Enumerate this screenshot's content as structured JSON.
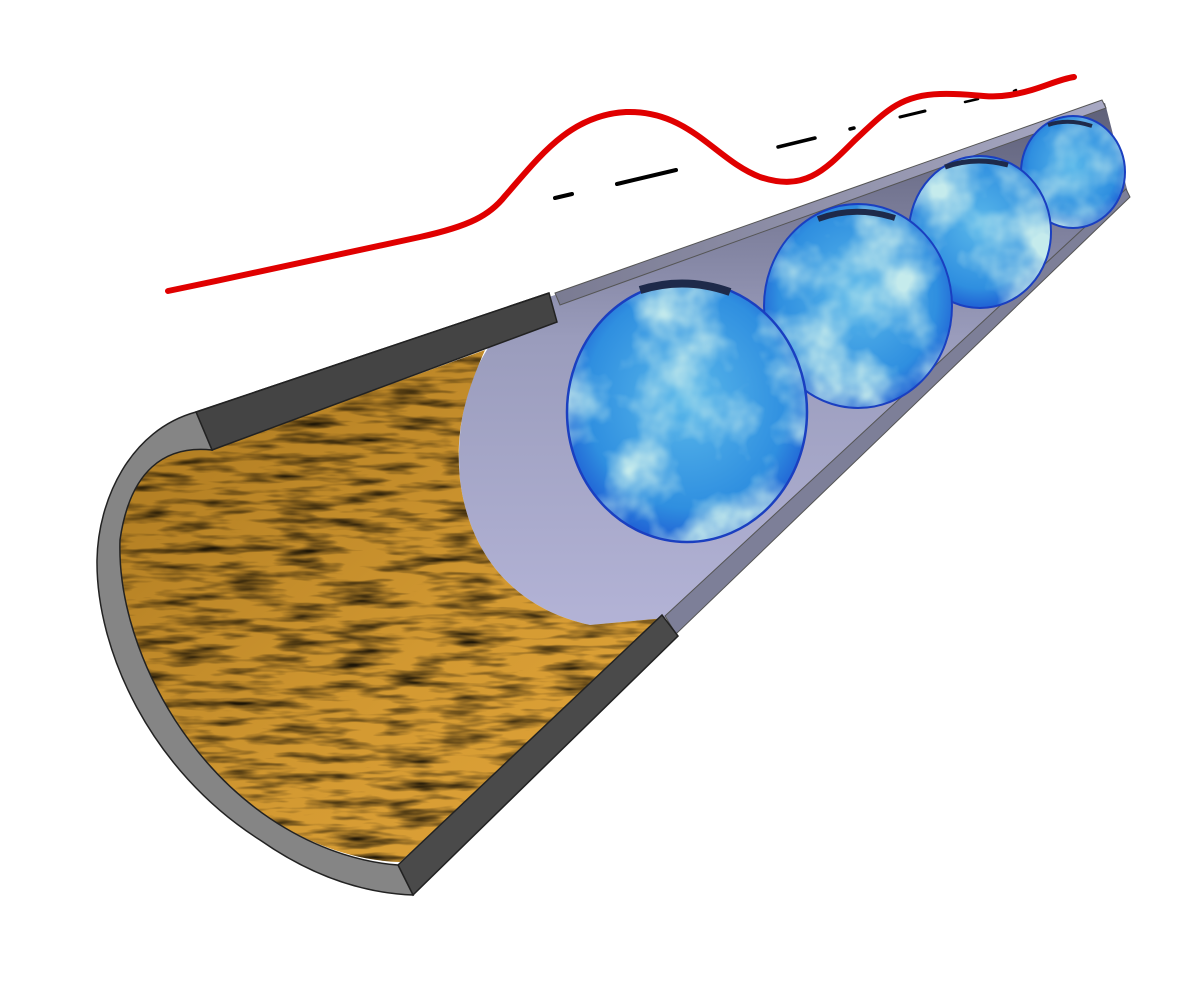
{
  "figure": {
    "background": "#ffffff",
    "colors": {
      "profile_curve": "#e00000",
      "dashed_centerline": "#000000",
      "pipe_cut_face": "#4a4a4a",
      "pipe_outer_wall": "#8a8a8a",
      "pipe_inner_surface": "#b8b8d8",
      "rough_wall": "#c08a28",
      "cross_section_light": "#8fd3d6",
      "cross_section_mid": "#3fa0e0",
      "cross_section_dark": "#1c58d8"
    },
    "cross_sections": {
      "count": 4
    },
    "legend": []
  }
}
